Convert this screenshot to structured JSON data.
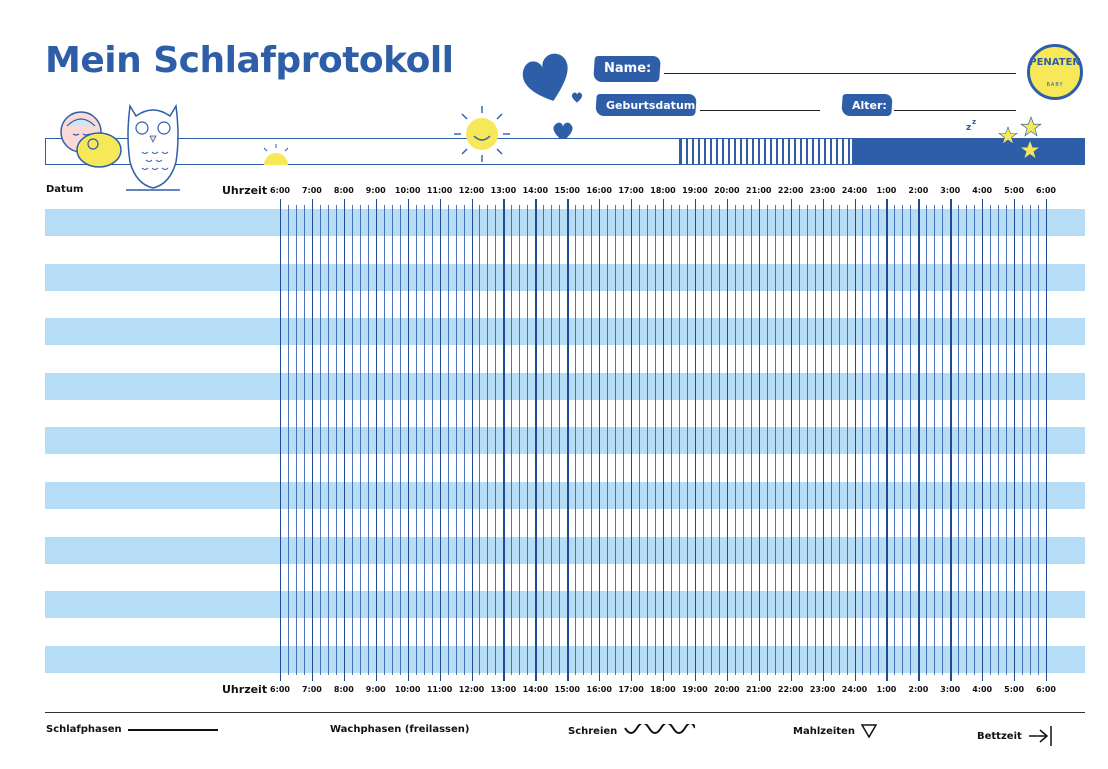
{
  "header": {
    "title": "Mein Schlafprotokoll",
    "name_label": "Name:",
    "birth_label": "Geburtsdatum:",
    "age_label": "Alter:"
  },
  "logo": {
    "text": "PENATEN",
    "sub": "BABY"
  },
  "columns": {
    "date_label": "Datum",
    "time_label": "Uhrzeit"
  },
  "hours": [
    "6:00",
    "7:00",
    "8:00",
    "9:00",
    "10:00",
    "11:00",
    "12:00",
    "13:00",
    "14:00",
    "15:00",
    "16:00",
    "17:00",
    "18:00",
    "19:00",
    "20:00",
    "21:00",
    "22:00",
    "23:00",
    "24:00",
    "1:00",
    "2:00",
    "3:00",
    "4:00",
    "5:00",
    "6:00"
  ],
  "row_count": 17,
  "legend": {
    "sleep": "Schlafphasen",
    "awake": "Wachphasen (freilassen)",
    "crying": "Schreien",
    "meals": "Mahlzeiten",
    "bedtime": "Bettzeit"
  },
  "colors": {
    "brand_blue": "#2f5ea8",
    "row_blue": "#b7dcf5",
    "sun_yellow": "#f7e85a"
  },
  "icons": [
    "baby-icon",
    "owl-icon",
    "sun-icon",
    "rising-sun-icon",
    "heart-icon",
    "moon-icon",
    "star-icon",
    "wave-icon",
    "triangle-icon",
    "arrow-bar-icon"
  ]
}
